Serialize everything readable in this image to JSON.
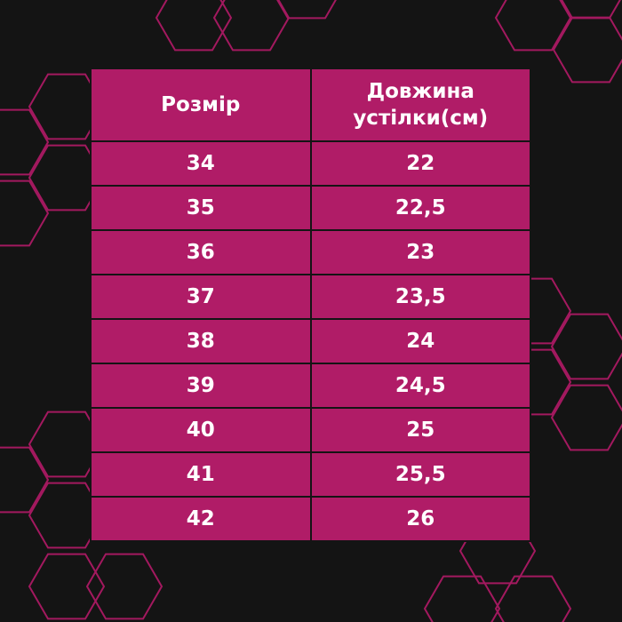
{
  "table": {
    "header": [
      "Розмір",
      "Довжина устілки(см)"
    ],
    "rows": [
      [
        "34",
        "22"
      ],
      [
        "35",
        "22,5"
      ],
      [
        "36",
        "23"
      ],
      [
        "37",
        "23,5"
      ],
      [
        "38",
        "24"
      ],
      [
        "39",
        "24,5"
      ],
      [
        "40",
        "25"
      ],
      [
        "41",
        "25,5"
      ],
      [
        "42",
        "26"
      ]
    ]
  }
}
